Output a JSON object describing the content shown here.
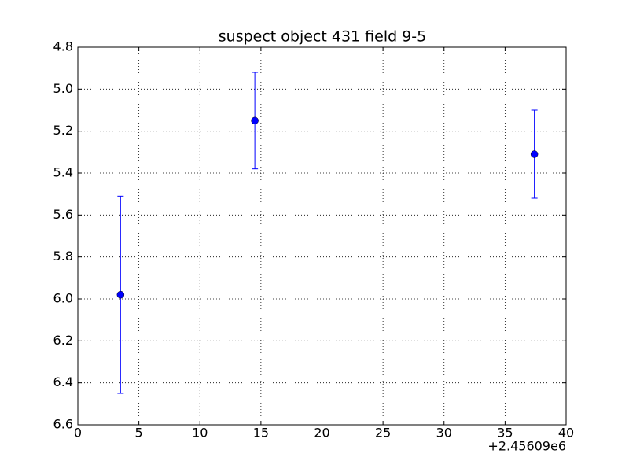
{
  "chart_data": {
    "type": "errorbar",
    "title": "suspect object 431 field 9-5",
    "x": [
      3.5,
      14.5,
      37.4
    ],
    "values": [
      5.98,
      5.15,
      5.31
    ],
    "errors": [
      0.47,
      0.23,
      0.21
    ],
    "color": "#0000ff",
    "xlim": [
      0,
      40
    ],
    "xticks": [
      0,
      5,
      10,
      15,
      20,
      25,
      30,
      35,
      40
    ],
    "x_offset_label": "+2.45609e6",
    "ylim": [
      4.8,
      6.6
    ],
    "y_inverted": true,
    "yticks": [
      4.8,
      {
        "value": 5,
        "label": "5.0"
      },
      5.2,
      5.4,
      5.6,
      5.8,
      {
        "value": 6,
        "label": "6.0"
      },
      6.2,
      6.4,
      6.6
    ],
    "grid": true
  }
}
